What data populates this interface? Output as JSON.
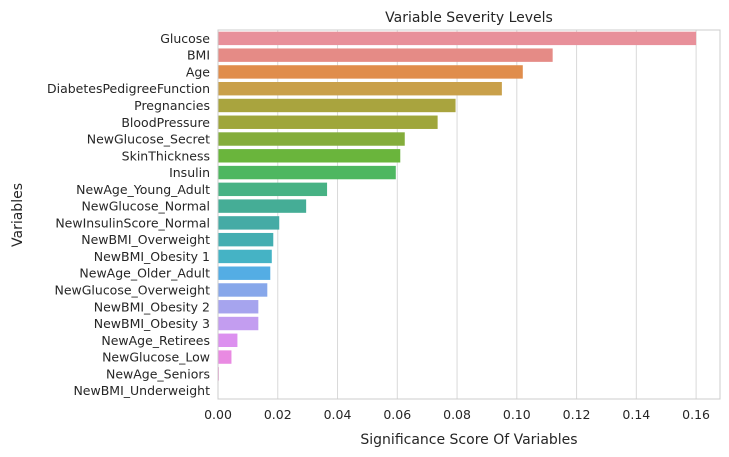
{
  "chart_data": {
    "type": "bar",
    "orientation": "horizontal",
    "title": "Variable Severity Levels",
    "xlabel": "Significance Score Of Variables",
    "ylabel": "Variables",
    "xlim": [
      0,
      0.168
    ],
    "xticks": [
      "0.00",
      "0.02",
      "0.04",
      "0.06",
      "0.08",
      "0.10",
      "0.12",
      "0.14",
      "0.16"
    ],
    "grid": true,
    "categories": [
      "Glucose",
      "BMI",
      "Age",
      "DiabetesPedigreeFunction",
      "Pregnancies",
      "BloodPressure",
      "NewGlucose_Secret",
      "SkinThickness",
      "Insulin",
      "NewAge_Young_Adult",
      "NewGlucose_Normal",
      "NewInsulinScore_Normal",
      "NewBMI_Overweight",
      "NewBMI_Obesity 1",
      "NewAge_Older_Adult",
      "NewGlucose_Overweight",
      "NewBMI_Obesity 2",
      "NewBMI_Obesity 3",
      "NewAge_Retirees",
      "NewGlucose_Low",
      "NewAge_Seniors",
      "NewBMI_Underweight"
    ],
    "values": [
      0.16,
      0.112,
      0.102,
      0.095,
      0.0795,
      0.0735,
      0.0625,
      0.061,
      0.0595,
      0.0365,
      0.0295,
      0.0205,
      0.0185,
      0.018,
      0.0175,
      0.0165,
      0.0135,
      0.0135,
      0.0065,
      0.0045,
      0.0003,
      0.0001
    ],
    "colors": [
      "#e8909a",
      "#e58b86",
      "#e08d4c",
      "#c9a04a",
      "#a9a43e",
      "#9fa63b",
      "#84ad3b",
      "#6ab53c",
      "#4eb760",
      "#47b284",
      "#45ad96",
      "#45aba5",
      "#43aeb1",
      "#45b3c5",
      "#54ade4",
      "#87a7ea",
      "#a6a4ee",
      "#c39df0",
      "#dc90ef",
      "#e98ae2",
      "#ed8dcd",
      "#eb8fb5"
    ]
  }
}
